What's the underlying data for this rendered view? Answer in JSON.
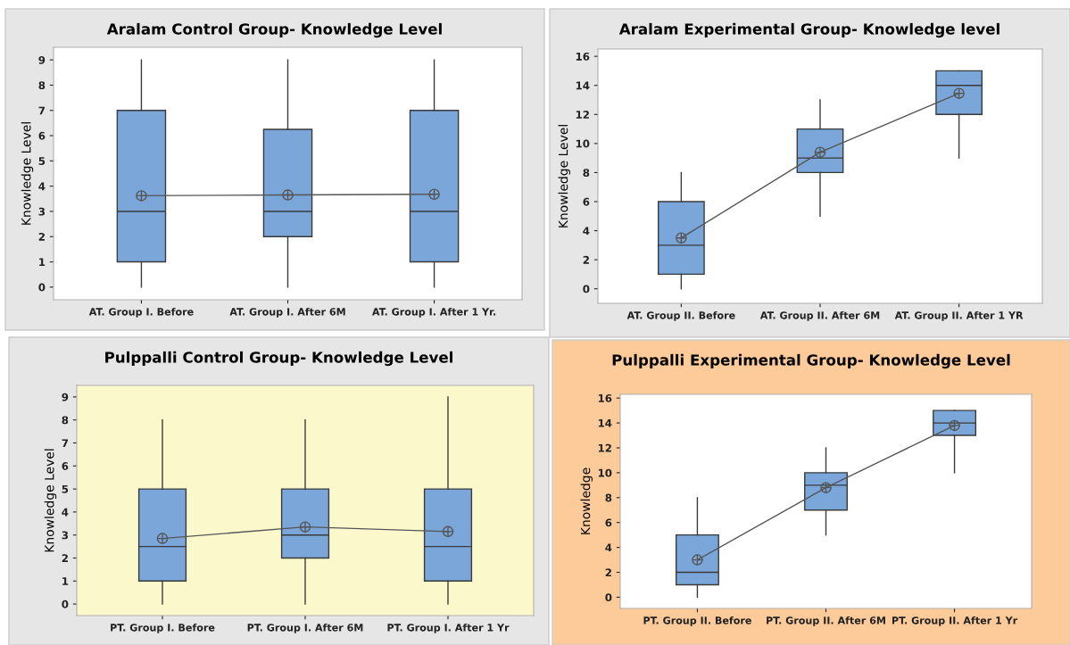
{
  "chart_data": [
    {
      "type": "box",
      "title": "Aralam Control Group- Knowledge Level",
      "ylabel": "Knowledge Level",
      "categories": [
        "AT. Group I. Before",
        "AT. Group I. After 6M",
        "AT. Group I. After 1 Yr."
      ],
      "ylim": [
        -0.5,
        9.5
      ],
      "yticks": [
        0,
        1,
        2,
        3,
        4,
        5,
        6,
        7,
        8,
        9
      ],
      "grid": false,
      "color": "#7ba6d9",
      "boxes": [
        {
          "low": 0,
          "q1": 1,
          "median": 3,
          "q3": 7,
          "high": 9
        },
        {
          "low": 0,
          "q1": 2,
          "median": 3,
          "q3": 6.25,
          "high": 9
        },
        {
          "low": 0,
          "q1": 1,
          "median": 3,
          "q3": 7,
          "high": 9
        }
      ],
      "series": [
        {
          "type": "line",
          "x": [
            "AT. Group I. Before",
            "AT. Group I. After 6M",
            "AT. Group I. After 1 Yr."
          ],
          "values": [
            3.62,
            3.65,
            3.68
          ],
          "color": "#555555",
          "marker": "circle"
        }
      ]
    },
    {
      "type": "box",
      "title": "Aralam Experimental Group- Knowledge level",
      "ylabel": "Knowledge Level",
      "categories": [
        "AT. Group II. Before",
        "AT. Group II. After 6M",
        "AT. Group II. After 1 YR"
      ],
      "ylim": [
        -1,
        16.5
      ],
      "yticks": [
        0,
        2,
        4,
        6,
        8,
        10,
        12,
        14,
        16
      ],
      "grid": false,
      "color": "#7ba6d9",
      "boxes": [
        {
          "low": 0,
          "q1": 1,
          "median": 3,
          "q3": 6,
          "high": 8
        },
        {
          "low": 5,
          "q1": 8,
          "median": 9,
          "q3": 11,
          "high": 13
        },
        {
          "low": 9,
          "q1": 12,
          "median": 14,
          "q3": 15,
          "high": 15
        }
      ],
      "series": [
        {
          "type": "line",
          "x": [
            "AT. Group II. Before",
            "AT. Group II. After 6M",
            "AT. Group II. After 1 YR"
          ],
          "values": [
            3.5,
            9.4,
            13.45
          ],
          "color": "#555555",
          "marker": "circle"
        }
      ]
    },
    {
      "type": "box",
      "title": "Pulppalli Control Group- Knowledge Level",
      "ylabel": "Knowledge Level",
      "categories": [
        "PT. Group I. Before",
        "PT. Group I. After 6M",
        "PT. Group I. After 1 Yr"
      ],
      "ylim": [
        -0.5,
        9.5
      ],
      "yticks": [
        0,
        1,
        2,
        3,
        4,
        5,
        6,
        7,
        8,
        9
      ],
      "grid": false,
      "color": "#7ba6d9",
      "boxes": [
        {
          "low": 0,
          "q1": 1,
          "median": 2.5,
          "q3": 5,
          "high": 8
        },
        {
          "low": 0,
          "q1": 2,
          "median": 3,
          "q3": 5,
          "high": 8
        },
        {
          "low": 0,
          "q1": 1,
          "median": 2.5,
          "q3": 5,
          "high": 9
        }
      ],
      "series": [
        {
          "type": "line",
          "x": [
            "PT. Group I. Before",
            "PT. Group I. After 6M",
            "PT. Group I. After 1 Yr"
          ],
          "values": [
            2.85,
            3.35,
            3.15
          ],
          "color": "#555555",
          "marker": "circle"
        }
      ]
    },
    {
      "type": "box",
      "title": "Pulppalli Experimental Group- Knowledge Level",
      "ylabel": "Knowledge",
      "categories": [
        "PT. Group II. Before",
        "PT. Group II. After 6M",
        "PT. Group II. After 1 Yr"
      ],
      "ylim": [
        -0.9,
        16.3
      ],
      "yticks": [
        0,
        2,
        4,
        6,
        8,
        10,
        12,
        14,
        16
      ],
      "grid": false,
      "color": "#7ba6d9",
      "boxes": [
        {
          "low": 0,
          "q1": 1,
          "median": 2,
          "q3": 5,
          "high": 8
        },
        {
          "low": 5,
          "q1": 7,
          "median": 9,
          "q3": 10,
          "high": 12
        },
        {
          "low": 10,
          "q1": 13,
          "median": 14,
          "q3": 15,
          "high": 15
        }
      ],
      "series": [
        {
          "type": "line",
          "x": [
            "PT. Group II. Before",
            "PT. Group II. After 6M",
            "PT. Group II. After 1 Yr"
          ],
          "values": [
            3.0,
            8.8,
            13.8
          ],
          "color": "#555555",
          "marker": "circle"
        }
      ]
    }
  ]
}
